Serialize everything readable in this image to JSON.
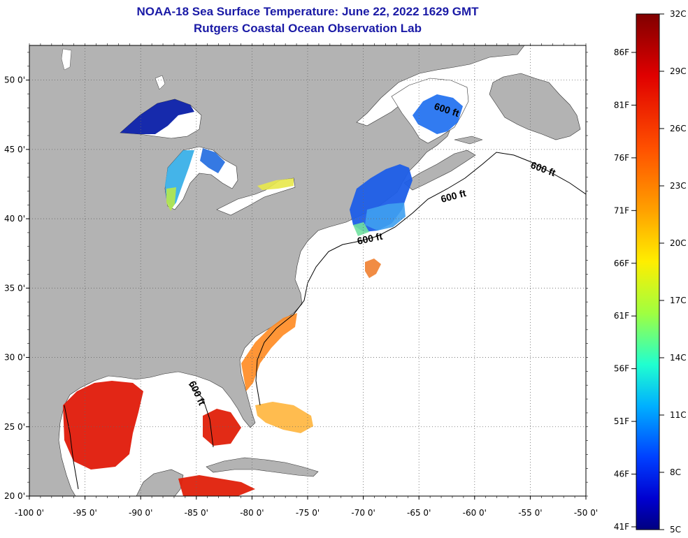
{
  "title": "NOAA-18 Sea Surface Temperature:  June 22, 2022 1629 GMT",
  "subtitle": "Rutgers Coastal Ocean Observation Lab",
  "map": {
    "lon_range": [
      -100,
      -50
    ],
    "lat_range": [
      20,
      52.5
    ],
    "lon_ticks": [
      {
        "value": -100,
        "label": "-100 0'"
      },
      {
        "value": -95,
        "label": "-95 0'"
      },
      {
        "value": -90,
        "label": "-90 0'"
      },
      {
        "value": -85,
        "label": "-85 0'"
      },
      {
        "value": -80,
        "label": "-80 0'"
      },
      {
        "value": -75,
        "label": "-75 0'"
      },
      {
        "value": -70,
        "label": "-70 0'"
      },
      {
        "value": -65,
        "label": "-65 0'"
      },
      {
        "value": -60,
        "label": "-60 0'"
      },
      {
        "value": -55,
        "label": "-55 0'"
      },
      {
        "value": -50,
        "label": "-50 0'"
      }
    ],
    "lat_ticks": [
      {
        "value": 20,
        "label": "20 0'"
      },
      {
        "value": 25,
        "label": "25 0'"
      },
      {
        "value": 30,
        "label": "30 0'"
      },
      {
        "value": 35,
        "label": "35 0'"
      },
      {
        "value": 40,
        "label": "40 0'"
      },
      {
        "value": 45,
        "label": "45 0'"
      },
      {
        "value": 50,
        "label": "50 0'"
      }
    ],
    "grid": true,
    "contour_labels": [
      "600 ft",
      "600 ft",
      "600 ft",
      "600 ft",
      "600 ft"
    ],
    "land_color": "#b3b3b3",
    "ocean_color": "#ffffff"
  },
  "colorbar": {
    "celsius_labels": [
      "32C",
      "29C",
      "26C",
      "23C",
      "20C",
      "17C",
      "14C",
      "11C",
      "8C",
      "5C"
    ],
    "fahrenheit_labels": [
      "86F",
      "81F",
      "76F",
      "71F",
      "66F",
      "61F",
      "56F",
      "51F",
      "46F",
      "41F"
    ],
    "colors": [
      "#800000",
      "#e00000",
      "#ff5000",
      "#ffa000",
      "#ffe000",
      "#b0ff40",
      "#40ffb0",
      "#00d0ff",
      "#0060ff",
      "#0000d0",
      "#000080"
    ]
  }
}
